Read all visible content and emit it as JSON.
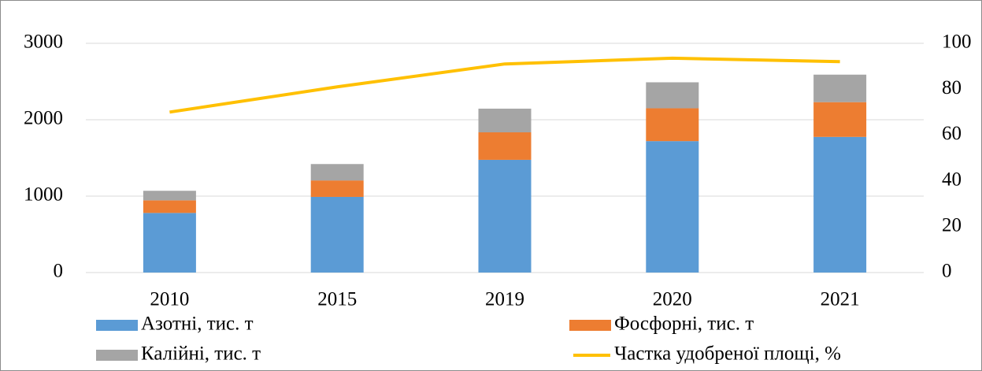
{
  "chart_data": {
    "type": "bar",
    "stacked": true,
    "categories": [
      "2010",
      "2015",
      "2019",
      "2020",
      "2021"
    ],
    "series": [
      {
        "name": "Азотні, тис. т",
        "color": "#5b9bd5",
        "values": [
          780,
          990,
          1475,
          1720,
          1775
        ]
      },
      {
        "name": "Фосфорні, тис. т",
        "color": "#ed7d31",
        "values": [
          165,
          215,
          360,
          430,
          455
        ]
      },
      {
        "name": "Калійні, тис. т",
        "color": "#a5a5a5",
        "values": [
          125,
          215,
          310,
          340,
          360
        ]
      },
      {
        "name": "Частка удобреної площі, %",
        "color": "#ffc000",
        "type": "line",
        "axis": "y2",
        "values": [
          70,
          81,
          91,
          93.5,
          92
        ]
      }
    ],
    "ylim": [
      0,
      3000
    ],
    "yticks": [
      0,
      1000,
      2000,
      3000
    ],
    "y2lim": [
      0,
      100
    ],
    "y2ticks": [
      0,
      20,
      40,
      60,
      80,
      100
    ],
    "grid": true,
    "legend": "bottom"
  }
}
